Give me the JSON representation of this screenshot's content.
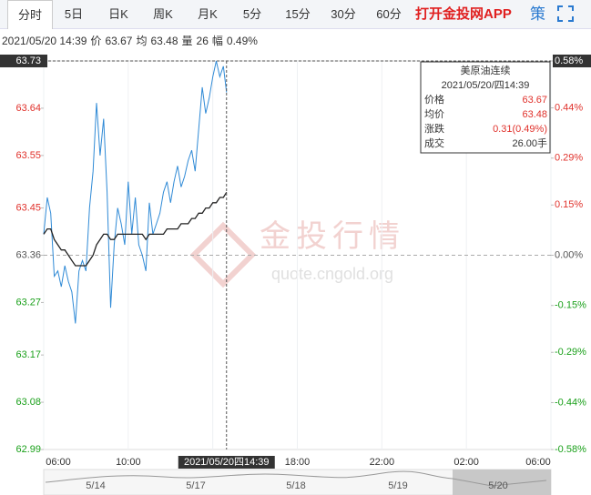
{
  "tabs": [
    "分时",
    "5日",
    "日K",
    "周K",
    "月K",
    "5分",
    "15分",
    "30分",
    "60分"
  ],
  "app_link": "打开金投网APP",
  "strategy": "策",
  "info": {
    "time": "2021/05/20 14:39",
    "price_label": "价",
    "price": "63.67",
    "avg_label": "均",
    "avg": "63.48",
    "volume_label": "量",
    "volume": "26",
    "range_label": "幅",
    "range": "0.49%"
  },
  "tooltip": {
    "title": "美原油连续",
    "date": "2021/05/20/四14:39",
    "rows": [
      [
        "价格",
        "63.67"
      ],
      [
        "均价",
        "63.48"
      ],
      [
        "涨跌",
        "0.31(0.49%)"
      ],
      [
        "成交",
        "26.00手"
      ]
    ]
  },
  "crosshair": {
    "y_label": "63.73",
    "y2_label": "0.58%",
    "x_label": "2021/05/20四14:39"
  },
  "watermark": {
    "name": "金投行情",
    "url": "quote.cngold.org"
  },
  "navigator": [
    "5/14",
    "5/17",
    "5/18",
    "5/19",
    "5/20"
  ],
  "chart_data": {
    "type": "line",
    "x": [
      "06:00",
      "06:10",
      "06:20",
      "06:30",
      "06:40",
      "06:50",
      "07:00",
      "07:10",
      "07:20",
      "07:30",
      "07:40",
      "07:50",
      "08:00",
      "08:10",
      "08:20",
      "08:30",
      "08:40",
      "08:50",
      "09:00",
      "09:10",
      "09:20",
      "09:30",
      "09:40",
      "09:50",
      "10:00",
      "10:10",
      "10:20",
      "10:30",
      "10:40",
      "10:50",
      "11:00",
      "11:10",
      "11:20",
      "11:30",
      "11:40",
      "11:50",
      "12:00",
      "12:10",
      "12:20",
      "12:30",
      "12:40",
      "12:50",
      "13:00",
      "13:10",
      "13:20",
      "13:30",
      "13:40",
      "13:50",
      "14:00",
      "14:10",
      "14:20",
      "14:30",
      "14:39"
    ],
    "series": [
      {
        "name": "价格",
        "color": "#2f8ad6",
        "values": [
          63.4,
          63.47,
          63.44,
          63.32,
          63.33,
          63.3,
          63.34,
          63.31,
          63.29,
          63.23,
          63.33,
          63.35,
          63.33,
          63.45,
          63.52,
          63.65,
          63.55,
          63.62,
          63.48,
          63.26,
          63.38,
          63.45,
          63.42,
          63.38,
          63.5,
          63.4,
          63.47,
          63.38,
          63.36,
          63.33,
          63.46,
          63.4,
          63.42,
          63.44,
          63.48,
          63.5,
          63.46,
          63.5,
          63.53,
          63.49,
          63.51,
          63.54,
          63.56,
          63.52,
          63.6,
          63.68,
          63.63,
          63.66,
          63.7,
          63.73,
          63.7,
          63.72,
          63.67
        ]
      },
      {
        "name": "均价",
        "color": "#222222",
        "values": [
          63.4,
          63.41,
          63.41,
          63.39,
          63.38,
          63.37,
          63.37,
          63.36,
          63.35,
          63.34,
          63.34,
          63.34,
          63.34,
          63.35,
          63.36,
          63.38,
          63.39,
          63.4,
          63.4,
          63.39,
          63.39,
          63.4,
          63.4,
          63.4,
          63.4,
          63.4,
          63.4,
          63.4,
          63.4,
          63.39,
          63.4,
          63.4,
          63.4,
          63.4,
          63.4,
          63.41,
          63.41,
          63.41,
          63.41,
          63.42,
          63.42,
          63.42,
          63.43,
          63.43,
          63.44,
          63.44,
          63.45,
          63.45,
          63.46,
          63.46,
          63.47,
          63.47,
          63.48
        ]
      }
    ],
    "xticks": [
      "06:00",
      "10:00",
      "14:00",
      "18:00",
      "22:00",
      "02:00",
      "06:00"
    ],
    "ylim": [
      62.99,
      63.73
    ],
    "yticks": [
      63.73,
      63.64,
      63.55,
      63.45,
      63.36,
      63.27,
      63.17,
      63.08,
      62.99
    ],
    "y2lim": [
      -0.58,
      0.58
    ],
    "y2ticks": [
      {
        "value": 0.58,
        "label": "0.58%"
      },
      {
        "value": 0.44,
        "label": "0.44%"
      },
      {
        "value": 0.29,
        "label": "0.29%"
      },
      {
        "value": 0.15,
        "label": "0.15%"
      },
      {
        "value": 0,
        "label": "0.00%"
      },
      {
        "value": -0.15,
        "label": "-0.15%"
      },
      {
        "value": -0.29,
        "label": "-0.29%"
      },
      {
        "value": -0.44,
        "label": "-0.44%"
      },
      {
        "value": -0.58,
        "label": "-0.58%"
      }
    ],
    "baseline": 63.36,
    "up_color": "#e0312b",
    "down_color": "#1aa01a"
  }
}
